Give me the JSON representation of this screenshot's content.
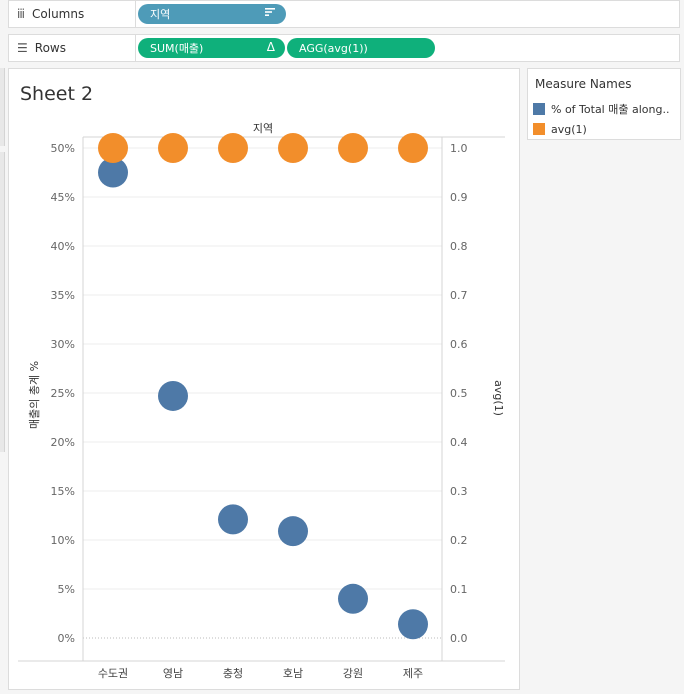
{
  "shelves": {
    "columns": {
      "label": "Columns",
      "icon": "columns-icon",
      "pills": [
        {
          "text": "지역",
          "icon": "sort-icon",
          "color": "#4e9bb8"
        }
      ]
    },
    "rows": {
      "label": "Rows",
      "icon": "rows-icon",
      "pills": [
        {
          "text": "SUM(매출)",
          "marker": "Δ",
          "color": "#0fb07b"
        },
        {
          "text": "AGG(avg(1))",
          "color": "#0fb07b"
        }
      ]
    }
  },
  "sheet": {
    "title": "Sheet 2"
  },
  "legend": {
    "title": "Measure Names",
    "items": [
      {
        "label": "% of Total 매출 along..",
        "color": "#4e79a7"
      },
      {
        "label": "avg(1)",
        "color": "#f28e2b"
      }
    ]
  },
  "chart_data": {
    "type": "scatter",
    "title": "지역",
    "categories": [
      "수도권",
      "영남",
      "충청",
      "호남",
      "강원",
      "제주"
    ],
    "ylabel": "매출의 총계 %",
    "y2label": "avg(1)",
    "ylim": [
      0,
      50
    ],
    "y2lim": [
      0,
      1
    ],
    "y_ticks": [
      "0%",
      "5%",
      "10%",
      "15%",
      "20%",
      "25%",
      "30%",
      "35%",
      "40%",
      "45%",
      "50%"
    ],
    "y2_ticks": [
      "0.0",
      "0.1",
      "0.2",
      "0.3",
      "0.4",
      "0.5",
      "0.6",
      "0.7",
      "0.8",
      "0.9",
      "1.0"
    ],
    "grid": true,
    "series": [
      {
        "name": "% of Total 매출 along..",
        "axis": "left",
        "color": "#4e79a7",
        "values": [
          47.5,
          24.7,
          12.1,
          10.9,
          4.0,
          1.4
        ]
      },
      {
        "name": "avg(1)",
        "axis": "right",
        "color": "#f28e2b",
        "values": [
          1.0,
          1.0,
          1.0,
          1.0,
          1.0,
          1.0
        ]
      }
    ]
  }
}
